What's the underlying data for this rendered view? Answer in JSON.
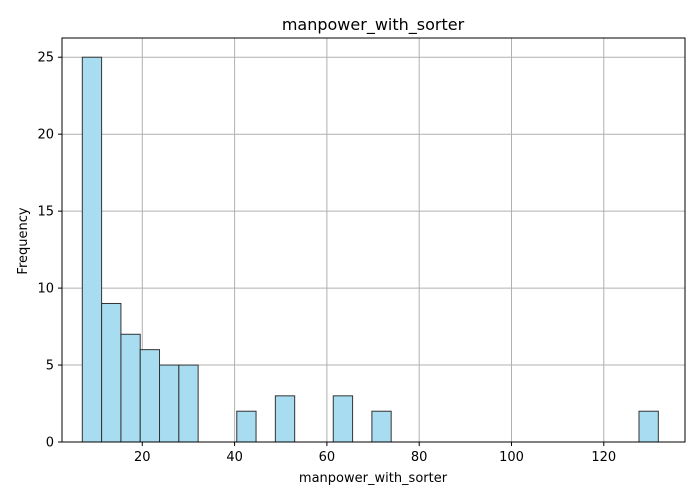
{
  "chart_data": {
    "type": "bar",
    "title": "manpower_with_sorter",
    "xlabel": "manpower_with_sorter",
    "ylabel": "Frequency",
    "xlim": [
      2.6,
      137.6
    ],
    "ylim": [
      0,
      26.25
    ],
    "xticks": [
      20,
      40,
      60,
      80,
      100,
      120
    ],
    "yticks": [
      0,
      5,
      10,
      15,
      20,
      25
    ],
    "grid": true,
    "bar_color": "#a8dcf0",
    "edge_color": "#333333",
    "bins": [
      {
        "x0": 7.0,
        "x1": 11.18,
        "count": 25
      },
      {
        "x0": 11.18,
        "x1": 15.37,
        "count": 9
      },
      {
        "x0": 15.37,
        "x1": 19.55,
        "count": 7
      },
      {
        "x0": 19.55,
        "x1": 23.73,
        "count": 6
      },
      {
        "x0": 23.73,
        "x1": 27.92,
        "count": 5
      },
      {
        "x0": 27.92,
        "x1": 32.1,
        "count": 5
      },
      {
        "x0": 40.47,
        "x1": 44.65,
        "count": 2
      },
      {
        "x0": 48.83,
        "x1": 53.02,
        "count": 3
      },
      {
        "x0": 61.38,
        "x1": 65.57,
        "count": 3
      },
      {
        "x0": 69.75,
        "x1": 73.93,
        "count": 2
      },
      {
        "x0": 127.63,
        "x1": 131.82,
        "count": 2
      }
    ]
  }
}
